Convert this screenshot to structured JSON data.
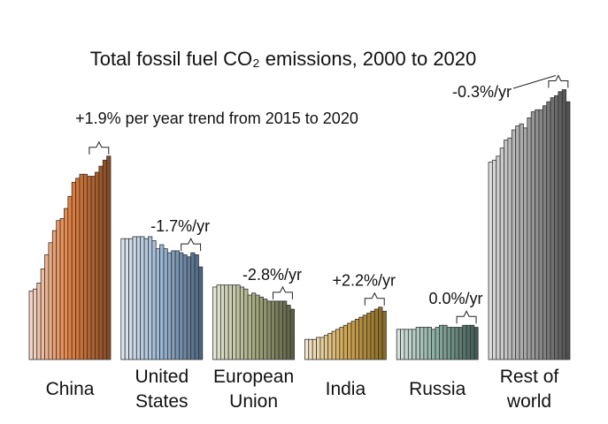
{
  "chart_data": {
    "type": "bar",
    "title": "Total fossil fuel CO₂  emissions, 2000 to 2020",
    "series": [
      {
        "name": "China",
        "colors": [
          "#f2d5c8",
          "#e8803c",
          "#8a4a22"
        ],
        "trend_label": "+1.9% per year trend from 2015 to 2020",
        "values": [
          3.4,
          3.5,
          3.8,
          4.5,
          5.2,
          5.8,
          6.4,
          6.9,
          7.0,
          7.5,
          8.1,
          8.8,
          9.0,
          9.2,
          9.2,
          9.1,
          9.1,
          9.3,
          9.6,
          9.9,
          10.1
        ]
      },
      {
        "name": "United States",
        "colors": [
          "#dde6f0",
          "#9ab6d4",
          "#4a6680"
        ],
        "trend_label": "-1.7%/yr",
        "values": [
          6.0,
          6.0,
          6.0,
          6.1,
          6.1,
          6.1,
          6.0,
          6.1,
          5.9,
          5.5,
          5.7,
          5.5,
          5.3,
          5.4,
          5.4,
          5.3,
          5.2,
          5.1,
          5.3,
          5.2,
          4.6
        ]
      },
      {
        "name": "European Union",
        "colors": [
          "#e4e6d4",
          "#a8ac80",
          "#5c6040"
        ],
        "trend_label": "-2.8%/yr",
        "values": [
          3.6,
          3.7,
          3.7,
          3.7,
          3.7,
          3.7,
          3.7,
          3.6,
          3.5,
          3.2,
          3.3,
          3.2,
          3.1,
          3.0,
          2.9,
          2.9,
          2.9,
          2.9,
          2.9,
          2.7,
          2.5
        ]
      },
      {
        "name": "India",
        "colors": [
          "#f4e8cc",
          "#d4a850",
          "#8a6a20"
        ],
        "trend_label": "+2.2%/yr",
        "values": [
          1.0,
          1.0,
          1.0,
          1.1,
          1.1,
          1.2,
          1.3,
          1.4,
          1.5,
          1.6,
          1.7,
          1.8,
          1.9,
          2.0,
          2.1,
          2.2,
          2.3,
          2.4,
          2.5,
          2.6,
          2.4
        ]
      },
      {
        "name": "Russia",
        "colors": [
          "#d4e2dc",
          "#88aca0",
          "#405c54"
        ],
        "trend_label": "0.0%/yr",
        "values": [
          1.5,
          1.5,
          1.5,
          1.5,
          1.5,
          1.6,
          1.6,
          1.6,
          1.6,
          1.5,
          1.6,
          1.7,
          1.7,
          1.6,
          1.6,
          1.6,
          1.6,
          1.7,
          1.7,
          1.7,
          1.6
        ]
      },
      {
        "name": "Rest of world",
        "colors": [
          "#dcdcdc",
          "#a0a0a0",
          "#505050"
        ],
        "trend_label": "-0.3%/yr",
        "values": [
          9.8,
          9.9,
          10.1,
          10.5,
          10.9,
          11.0,
          11.4,
          11.6,
          11.7,
          11.5,
          12.0,
          12.3,
          12.4,
          12.4,
          12.6,
          12.8,
          13.0,
          13.1,
          13.3,
          13.4,
          12.8
        ]
      }
    ]
  }
}
